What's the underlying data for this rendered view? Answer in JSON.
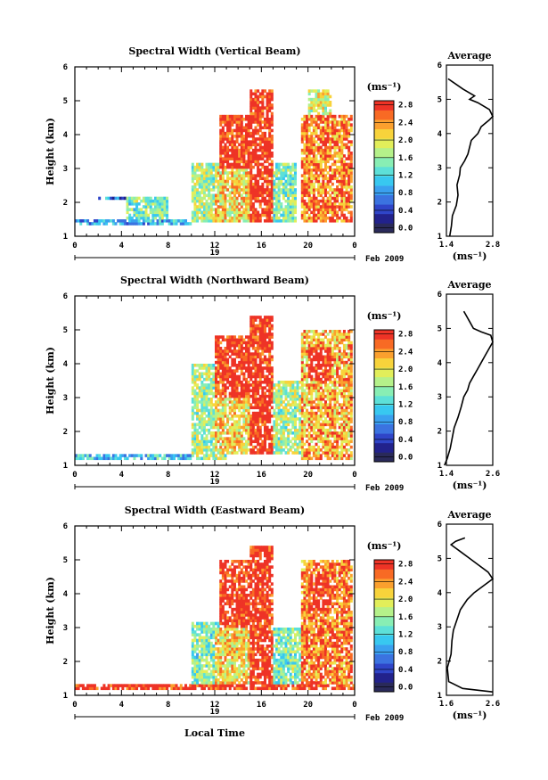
{
  "chart_data": [
    {
      "type": "heatmap",
      "title": "Spectral Width (Vertical Beam)",
      "xlabel": "",
      "ylabel": "Height (km)",
      "xticks": [
        "0",
        "4",
        "8",
        "12",
        "16",
        "20",
        "0"
      ],
      "xlim": [
        0,
        24
      ],
      "yticks": [
        "1",
        "2",
        "3",
        "4",
        "5",
        "6"
      ],
      "ylim": [
        1,
        6
      ],
      "date_day": "19",
      "date_label": "Feb 2009",
      "colorbar": {
        "title": "(ms⁻¹)",
        "ticks": [
          "0.0",
          "0.4",
          "0.8",
          "1.2",
          "1.6",
          "2.0",
          "2.4",
          "2.8"
        ],
        "range": [
          0,
          3.0
        ]
      },
      "cells": [
        {
          "x": [
            0,
            10
          ],
          "y": [
            1.35,
            1.5
          ],
          "v": 1.0
        },
        {
          "x": [
            2,
            6.5
          ],
          "y": [
            2.1,
            2.2
          ],
          "v": 0.8
        },
        {
          "x": [
            4.5,
            8
          ],
          "y": [
            1.5,
            2.2
          ],
          "v": 1.6
        },
        {
          "x": [
            10,
            13
          ],
          "y": [
            1.4,
            3.2
          ],
          "v": 1.8
        },
        {
          "x": [
            12.5,
            16.5
          ],
          "y": [
            3.0,
            4.6
          ],
          "v": 3.0
        },
        {
          "x": [
            15,
            17
          ],
          "y": [
            1.4,
            5.3
          ],
          "v": 3.0
        },
        {
          "x": [
            12,
            16
          ],
          "y": [
            1.4,
            3.0
          ],
          "v": 2.2
        },
        {
          "x": [
            17,
            19
          ],
          "y": [
            1.4,
            3.2
          ],
          "v": 1.6
        },
        {
          "x": [
            19.5,
            23.8
          ],
          "y": [
            1.4,
            4.6
          ],
          "v": 2.6
        },
        {
          "x": [
            20,
            22
          ],
          "y": [
            3.5,
            5.3
          ],
          "v": 2.0
        }
      ],
      "average": {
        "title": "Average",
        "xticks": [
          "1.4",
          "2.8"
        ],
        "xlim": [
          1.4,
          2.8
        ],
        "xlabel": "(ms⁻¹)",
        "x": [
          1.5,
          1.55,
          1.58,
          1.7,
          1.75,
          1.72,
          1.8,
          1.82,
          1.95,
          2.05,
          2.1,
          2.15,
          2.35,
          2.45,
          2.7,
          2.8,
          2.7,
          2.35,
          2.1,
          2.25,
          1.9,
          1.6,
          1.45
        ],
        "y": [
          1.0,
          1.3,
          1.6,
          1.9,
          2.2,
          2.5,
          2.8,
          3.0,
          3.2,
          3.4,
          3.6,
          3.8,
          4.0,
          4.2,
          4.4,
          4.5,
          4.7,
          4.9,
          5.0,
          5.1,
          5.3,
          5.5,
          5.6
        ]
      }
    },
    {
      "type": "heatmap",
      "title": "Spectral Width (Northward Beam)",
      "xlabel": "",
      "ylabel": "Height (km)",
      "xticks": [
        "0",
        "4",
        "8",
        "12",
        "16",
        "20",
        "0"
      ],
      "xlim": [
        0,
        24
      ],
      "yticks": [
        "1",
        "2",
        "3",
        "4",
        "5",
        "6"
      ],
      "ylim": [
        1,
        6
      ],
      "date_day": "19",
      "date_label": "Feb 2009",
      "colorbar": {
        "title": "(ms⁻¹)",
        "ticks": [
          "0.0",
          "0.4",
          "0.8",
          "1.2",
          "1.6",
          "2.0",
          "2.4",
          "2.8"
        ],
        "range": [
          0,
          3.0
        ]
      },
      "cells": [
        {
          "x": [
            0,
            10
          ],
          "y": [
            1.15,
            1.35
          ],
          "v": 1.2
        },
        {
          "x": [
            10,
            13
          ],
          "y": [
            1.2,
            4.0
          ],
          "v": 1.8
        },
        {
          "x": [
            12,
            16.5
          ],
          "y": [
            3.0,
            4.8
          ],
          "v": 3.0
        },
        {
          "x": [
            15,
            17
          ],
          "y": [
            1.3,
            5.4
          ],
          "v": 3.0
        },
        {
          "x": [
            12,
            16
          ],
          "y": [
            1.3,
            3.0
          ],
          "v": 2.2
        },
        {
          "x": [
            17,
            19.5
          ],
          "y": [
            1.3,
            3.5
          ],
          "v": 1.8
        },
        {
          "x": [
            19.5,
            23.8
          ],
          "y": [
            1.2,
            5.0
          ],
          "v": 2.4
        },
        {
          "x": [
            20,
            22
          ],
          "y": [
            3.5,
            4.5
          ],
          "v": 3.0
        }
      ],
      "average": {
        "title": "Average",
        "xticks": [
          "1.4",
          "2.6"
        ],
        "xlim": [
          1.4,
          2.6
        ],
        "xlabel": "(ms⁻¹)",
        "x": [
          1.35,
          1.42,
          1.5,
          1.55,
          1.6,
          1.7,
          1.78,
          1.85,
          1.95,
          2.0,
          2.1,
          2.2,
          2.3,
          2.4,
          2.5,
          2.6,
          2.55,
          2.3,
          2.1,
          2.0,
          1.9,
          1.85
        ],
        "y": [
          1.0,
          1.2,
          1.5,
          1.8,
          2.1,
          2.4,
          2.7,
          3.0,
          3.2,
          3.4,
          3.6,
          3.8,
          4.0,
          4.2,
          4.4,
          4.6,
          4.8,
          4.9,
          5.0,
          5.2,
          5.4,
          5.5
        ]
      }
    },
    {
      "type": "heatmap",
      "title": "Spectral Width (Eastward Beam)",
      "xlabel": "Local Time",
      "ylabel": "Height (km)",
      "xticks": [
        "0",
        "4",
        "8",
        "12",
        "16",
        "20",
        "0"
      ],
      "xlim": [
        0,
        24
      ],
      "yticks": [
        "1",
        "2",
        "3",
        "4",
        "5",
        "6"
      ],
      "ylim": [
        1,
        6
      ],
      "date_day": "19",
      "date_label": "Feb 2009",
      "colorbar": {
        "title": "(ms⁻¹)",
        "ticks": [
          "0.0",
          "0.4",
          "0.8",
          "1.2",
          "1.6",
          "2.0",
          "2.4",
          "2.8"
        ],
        "range": [
          0,
          3.0
        ]
      },
      "cells": [
        {
          "x": [
            0,
            24
          ],
          "y": [
            1.15,
            1.3
          ],
          "v": 3.0
        },
        {
          "x": [
            10,
            13
          ],
          "y": [
            1.3,
            3.2
          ],
          "v": 1.6
        },
        {
          "x": [
            12.5,
            16.5
          ],
          "y": [
            3.0,
            5.0
          ],
          "v": 3.0
        },
        {
          "x": [
            15,
            17
          ],
          "y": [
            1.3,
            5.4
          ],
          "v": 3.0
        },
        {
          "x": [
            12,
            16
          ],
          "y": [
            1.3,
            3.0
          ],
          "v": 2.2
        },
        {
          "x": [
            17,
            19.5
          ],
          "y": [
            1.3,
            3.0
          ],
          "v": 1.6
        },
        {
          "x": [
            19.5,
            23.8
          ],
          "y": [
            1.3,
            5.0
          ],
          "v": 2.6
        },
        {
          "x": [
            20,
            22
          ],
          "y": [
            3.5,
            4.5
          ],
          "v": 3.0
        }
      ],
      "average": {
        "title": "Average",
        "xticks": [
          "1.6",
          "2.6"
        ],
        "xlim": [
          1.6,
          2.6
        ],
        "xlabel": "(ms⁻¹)",
        "x": [
          2.6,
          1.95,
          1.65,
          1.62,
          1.7,
          1.72,
          1.75,
          1.8,
          1.85,
          1.9,
          2.05,
          2.2,
          2.4,
          2.6,
          2.5,
          2.3,
          2.1,
          1.9,
          1.8,
          1.7,
          1.8,
          2.0
        ],
        "y": [
          1.1,
          1.2,
          1.4,
          1.8,
          2.2,
          2.6,
          2.9,
          3.1,
          3.3,
          3.5,
          3.8,
          4.0,
          4.2,
          4.4,
          4.6,
          4.8,
          5.0,
          5.2,
          5.3,
          5.4,
          5.5,
          5.6
        ]
      }
    }
  ]
}
